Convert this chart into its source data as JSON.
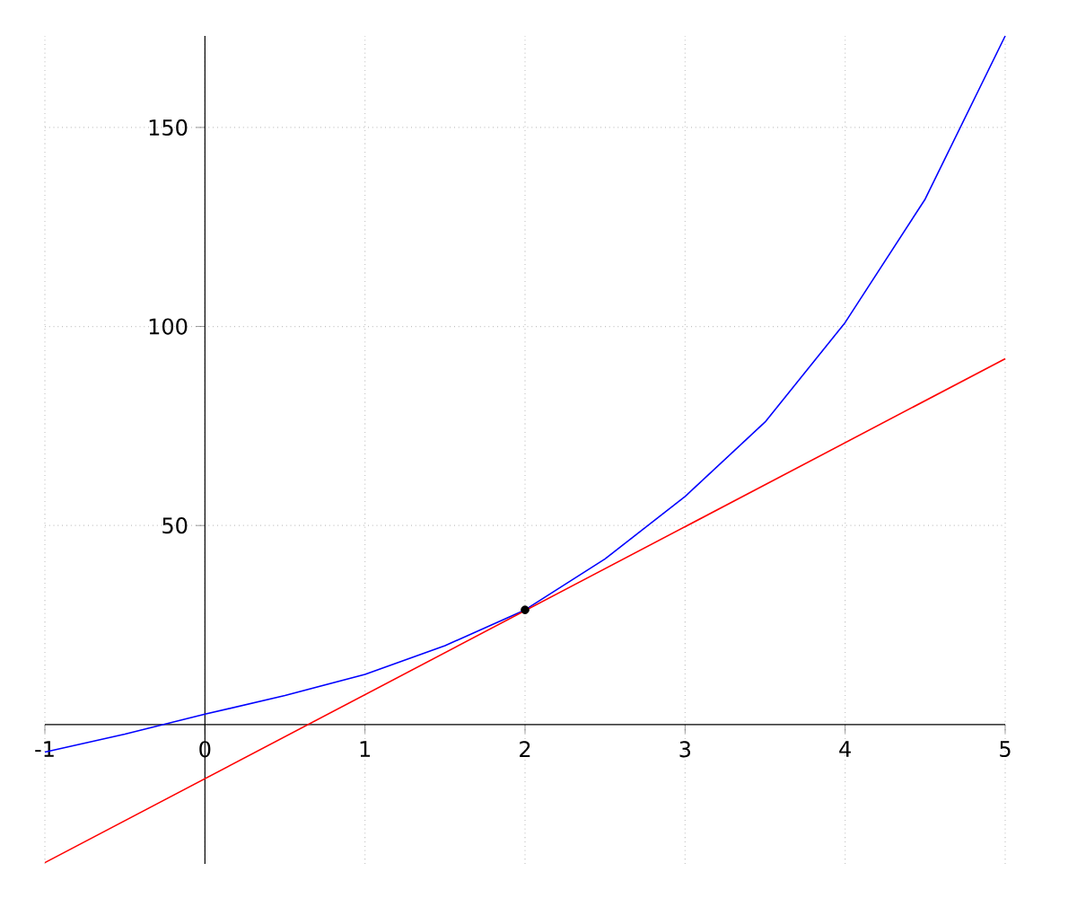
{
  "chart_data": {
    "type": "line",
    "xlim": [
      -1,
      5
    ],
    "ylim": [
      -35,
      173
    ],
    "xticks": [
      -1,
      0,
      1,
      2,
      3,
      4,
      5
    ],
    "yticks": [
      50,
      100,
      150
    ],
    "grid": true,
    "series": [
      {
        "color": "#0000ff",
        "x": [
          -1,
          -0.5,
          0,
          0.5,
          1,
          1.5,
          2,
          2.5,
          3,
          3.5,
          4,
          4.5,
          5
        ],
        "values": [
          -6.9,
          -2.4,
          2.6,
          7.3,
          12.6,
          19.8,
          28.8,
          41.6,
          57.3,
          76,
          101,
          132,
          173
        ]
      },
      {
        "color": "#ff0000",
        "x": [
          -1,
          5
        ],
        "values": [
          -34.7,
          91.9
        ]
      },
      {
        "type": "scatter",
        "color": "#000000",
        "marker": "circle",
        "x": [
          2
        ],
        "values": [
          28.8
        ]
      }
    ]
  }
}
